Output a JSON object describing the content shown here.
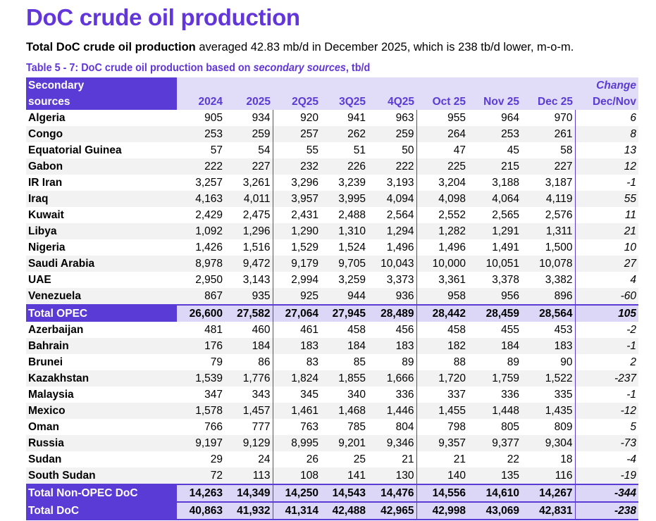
{
  "title": "DoC crude oil production",
  "subtitle": {
    "bold": "Total DoC crude oil production",
    "rest": " averaged 42.83 mb/d in December 2025, which is 238 tb/d lower, m-o-m."
  },
  "caption": {
    "pre": "Table 5 - 7: DoC crude oil production based on ",
    "italic": "secondary sources",
    "post": ", tb/d"
  },
  "header": {
    "name_line1": "Secondary",
    "name_line2": "sources",
    "change_line1": "Change",
    "columns": [
      "2024",
      "2025",
      "2Q25",
      "3Q25",
      "4Q25",
      "Oct 25",
      "Nov 25",
      "Dec 25",
      "Dec/Nov"
    ]
  },
  "rows": [
    {
      "name": "Algeria",
      "v": [
        "905",
        "934",
        "920",
        "941",
        "963",
        "955",
        "964",
        "970",
        "6"
      ]
    },
    {
      "name": "Congo",
      "v": [
        "253",
        "259",
        "257",
        "262",
        "259",
        "264",
        "253",
        "261",
        "8"
      ]
    },
    {
      "name": "Equatorial Guinea",
      "v": [
        "57",
        "54",
        "55",
        "51",
        "50",
        "47",
        "45",
        "58",
        "13"
      ]
    },
    {
      "name": "Gabon",
      "v": [
        "222",
        "227",
        "232",
        "226",
        "222",
        "225",
        "215",
        "227",
        "12"
      ]
    },
    {
      "name": "IR Iran",
      "v": [
        "3,257",
        "3,261",
        "3,296",
        "3,239",
        "3,193",
        "3,204",
        "3,188",
        "3,187",
        "-1"
      ]
    },
    {
      "name": "Iraq",
      "v": [
        "4,163",
        "4,011",
        "3,957",
        "3,995",
        "4,094",
        "4,098",
        "4,064",
        "4,119",
        "55"
      ]
    },
    {
      "name": "Kuwait",
      "v": [
        "2,429",
        "2,475",
        "2,431",
        "2,488",
        "2,564",
        "2,552",
        "2,565",
        "2,576",
        "11"
      ]
    },
    {
      "name": "Libya",
      "v": [
        "1,092",
        "1,296",
        "1,290",
        "1,310",
        "1,294",
        "1,282",
        "1,291",
        "1,311",
        "21"
      ]
    },
    {
      "name": "Nigeria",
      "v": [
        "1,426",
        "1,516",
        "1,529",
        "1,524",
        "1,496",
        "1,496",
        "1,491",
        "1,500",
        "10"
      ]
    },
    {
      "name": "Saudi Arabia",
      "v": [
        "8,978",
        "9,472",
        "9,179",
        "9,705",
        "10,043",
        "10,000",
        "10,051",
        "10,078",
        "27"
      ]
    },
    {
      "name": "UAE",
      "v": [
        "2,950",
        "3,143",
        "2,994",
        "3,259",
        "3,373",
        "3,361",
        "3,378",
        "3,382",
        "4"
      ]
    },
    {
      "name": "Venezuela",
      "v": [
        "867",
        "935",
        "925",
        "944",
        "936",
        "958",
        "956",
        "896",
        "-60"
      ]
    },
    {
      "name": "Total  OPEC",
      "total": true,
      "v": [
        "26,600",
        "27,582",
        "27,064",
        "27,945",
        "28,489",
        "28,442",
        "28,459",
        "28,564",
        "105"
      ]
    },
    {
      "name": "Azerbaijan",
      "v": [
        "481",
        "460",
        "461",
        "458",
        "456",
        "458",
        "455",
        "453",
        "-2"
      ]
    },
    {
      "name": "Bahrain",
      "v": [
        "176",
        "184",
        "183",
        "184",
        "183",
        "182",
        "184",
        "183",
        "-1"
      ]
    },
    {
      "name": "Brunei",
      "v": [
        "79",
        "86",
        "83",
        "85",
        "89",
        "88",
        "89",
        "90",
        "2"
      ]
    },
    {
      "name": "Kazakhstan",
      "v": [
        "1,539",
        "1,776",
        "1,824",
        "1,855",
        "1,666",
        "1,720",
        "1,759",
        "1,522",
        "-237"
      ]
    },
    {
      "name": "Malaysia",
      "v": [
        "347",
        "343",
        "345",
        "340",
        "336",
        "337",
        "336",
        "335",
        "-1"
      ]
    },
    {
      "name": "Mexico",
      "v": [
        "1,578",
        "1,457",
        "1,461",
        "1,468",
        "1,446",
        "1,455",
        "1,448",
        "1,435",
        "-12"
      ]
    },
    {
      "name": "Oman",
      "v": [
        "766",
        "777",
        "763",
        "785",
        "804",
        "798",
        "805",
        "809",
        "5"
      ]
    },
    {
      "name": "Russia",
      "v": [
        "9,197",
        "9,129",
        "8,995",
        "9,201",
        "9,346",
        "9,357",
        "9,377",
        "9,304",
        "-73"
      ]
    },
    {
      "name": "Sudan",
      "v": [
        "29",
        "24",
        "26",
        "25",
        "21",
        "21",
        "22",
        "18",
        "-4"
      ]
    },
    {
      "name": "South Sudan",
      "v": [
        "72",
        "113",
        "108",
        "141",
        "130",
        "140",
        "135",
        "116",
        "-19"
      ]
    },
    {
      "name": "Total Non-OPEC DoC",
      "total": true,
      "v": [
        "14,263",
        "14,349",
        "14,250",
        "14,543",
        "14,476",
        "14,556",
        "14,610",
        "14,267",
        "-344"
      ]
    },
    {
      "name": "Total DoC",
      "total": true,
      "v": [
        "40,863",
        "41,932",
        "41,314",
        "42,488",
        "42,965",
        "42,998",
        "43,069",
        "42,831",
        "-238"
      ]
    }
  ]
}
